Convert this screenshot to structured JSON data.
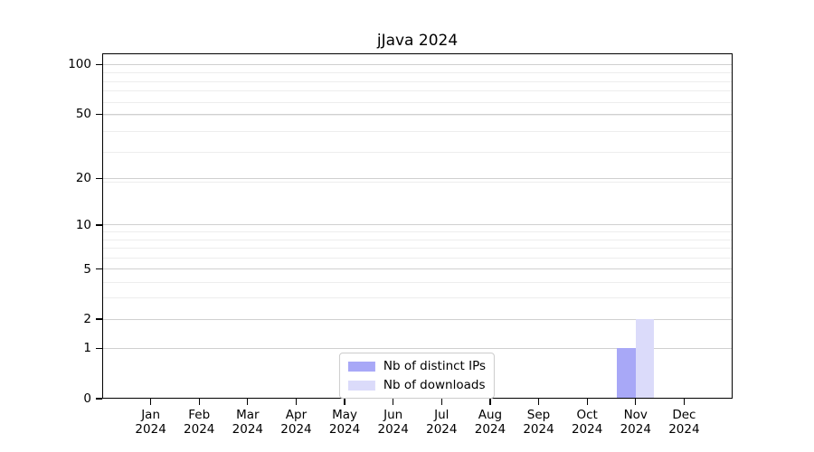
{
  "chart_data": {
    "type": "bar",
    "title": "jJava 2024",
    "categories": [
      "Jan",
      "Feb",
      "Mar",
      "Apr",
      "May",
      "Jun",
      "Jul",
      "Aug",
      "Sep",
      "Oct",
      "Nov",
      "Dec"
    ],
    "category_year": "2024",
    "series": [
      {
        "name": "Nb of distinct IPs",
        "color": "#a8a8f7",
        "values": [
          0,
          0,
          0,
          0,
          0,
          0,
          0,
          0,
          0,
          0,
          1,
          0
        ]
      },
      {
        "name": "Nb of downloads",
        "color": "#dbdbfa",
        "values": [
          0,
          0,
          0,
          0,
          0,
          0,
          0,
          0,
          0,
          0,
          2,
          0
        ]
      }
    ],
    "y_axis": {
      "scale": "log1p",
      "ticks": [
        0,
        1,
        2,
        5,
        10,
        20,
        50,
        100
      ],
      "minor_gridlines": [
        3,
        4,
        6,
        7,
        8,
        9,
        19,
        29,
        39,
        49,
        59,
        69,
        79,
        89
      ],
      "max": 117
    },
    "xlabel": "",
    "ylabel": "",
    "grid": true,
    "legend_position": "lower-center"
  },
  "style": {
    "background": "#ffffff",
    "axis_color": "#000000",
    "major_grid_color": "#d0d0d0",
    "minor_grid_color": "#ededed",
    "legend_border_color": "#cccccc"
  }
}
